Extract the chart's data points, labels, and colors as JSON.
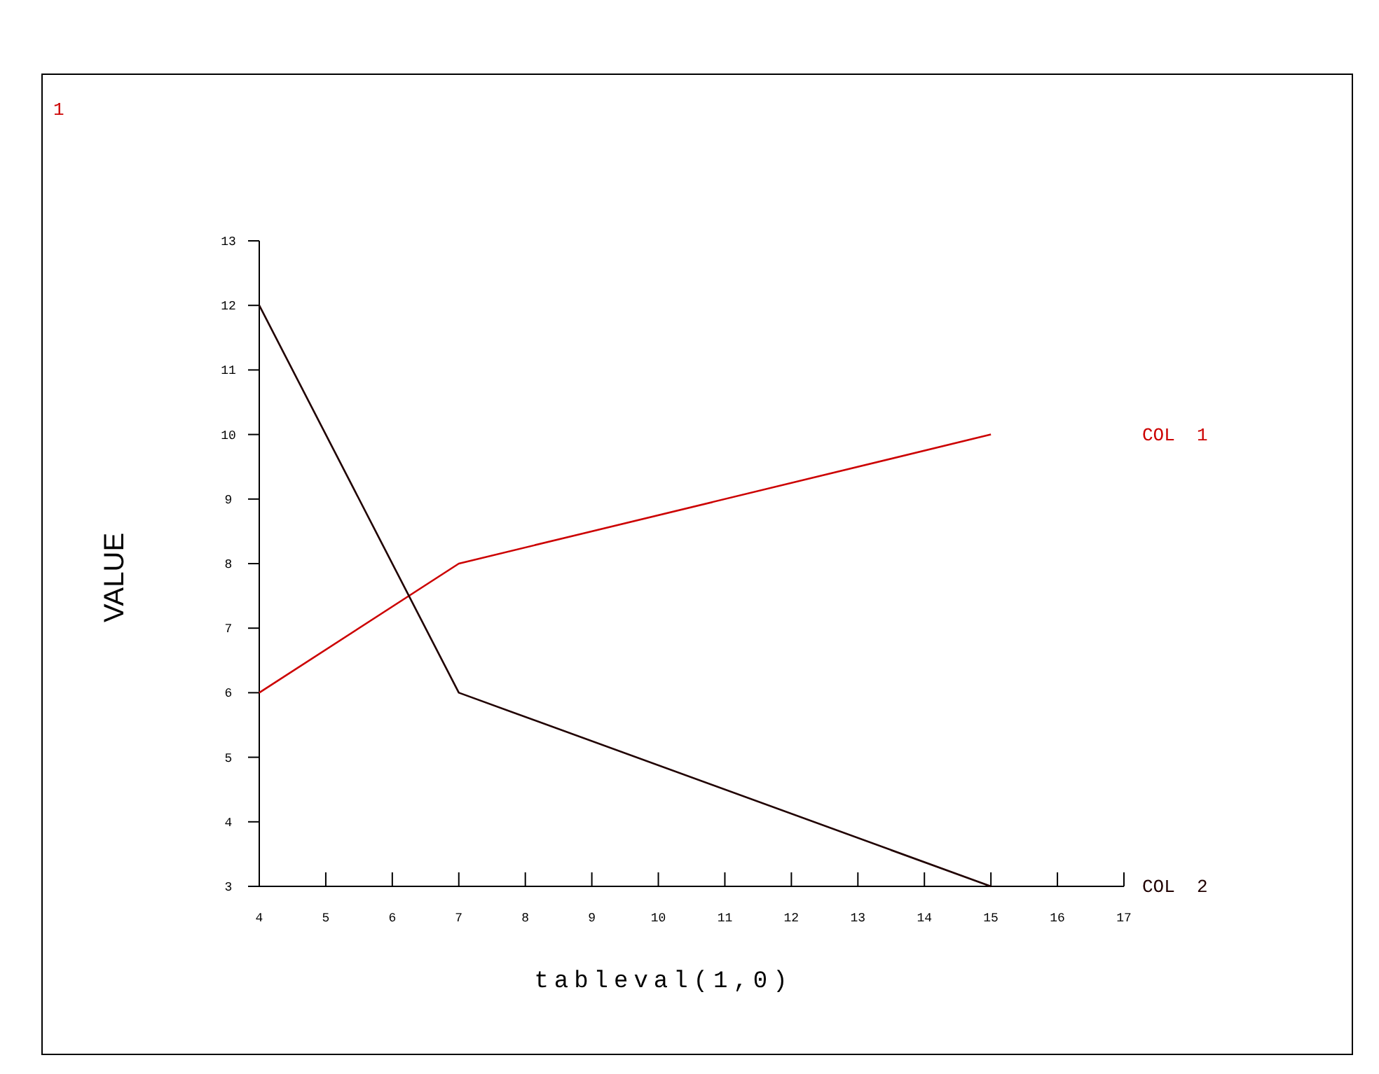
{
  "chart_data": {
    "type": "line",
    "xlabel": "tableval(1,0)",
    "ylabel": "VALUE",
    "annotations": [
      "1"
    ],
    "xlim": [
      4,
      17
    ],
    "xticks": [
      4,
      5,
      6,
      7,
      8,
      9,
      10,
      11,
      12,
      13,
      14,
      15,
      16,
      17
    ],
    "ylim": [
      3,
      13
    ],
    "yticks": [
      3,
      4,
      5,
      6,
      7,
      8,
      9,
      10,
      11,
      12,
      13
    ],
    "grid": false,
    "marker": "none",
    "line_style": "solid",
    "series": [
      {
        "name": "COL 1",
        "color": "#cc0000",
        "x": [
          4,
          7,
          15
        ],
        "values": [
          6,
          8,
          10
        ]
      },
      {
        "name": "COL 2",
        "color": "#200000",
        "x": [
          4,
          7,
          15
        ],
        "values": [
          12,
          6,
          3
        ]
      }
    ]
  }
}
